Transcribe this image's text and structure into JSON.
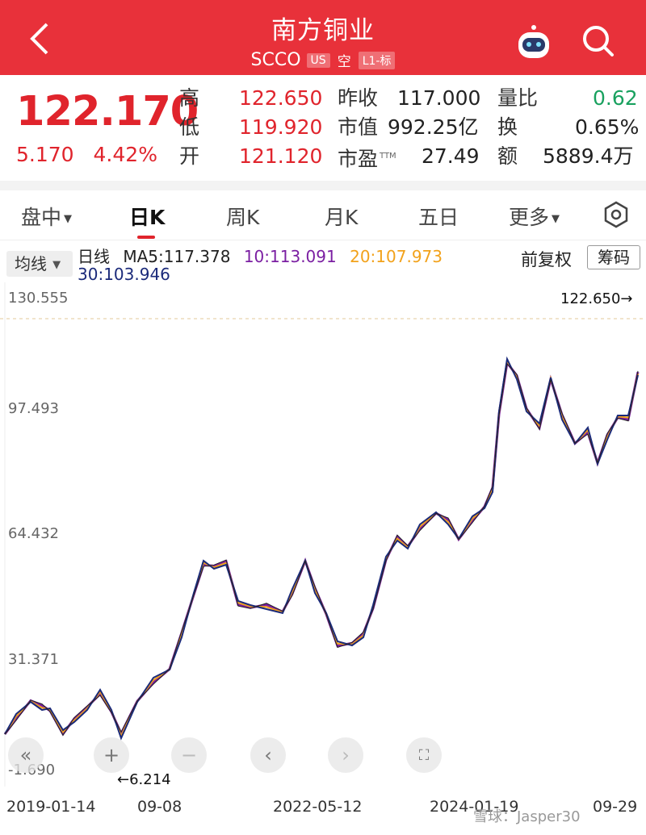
{
  "header": {
    "title": "南方铜业",
    "ticker": "SCCO",
    "tag_market": "US",
    "tag_short": "空",
    "tag_level": "L1-标"
  },
  "quote": {
    "price": "122.170",
    "change": "5.170",
    "change_pct": "4.42%",
    "high_label": "高",
    "high": "122.650",
    "low_label": "低",
    "low": "119.920",
    "open_label": "开",
    "open": "121.120",
    "prev_close_label": "昨收",
    "prev_close": "117.000",
    "market_cap_label": "市值",
    "market_cap": "992.25亿",
    "pe_label": "市盈",
    "pe_tag": "TTM",
    "pe": "27.49",
    "volume_ratio_label": "量比",
    "volume_ratio": "0.62",
    "turnover_label": "换",
    "turnover": "0.65%",
    "amount_label": "额",
    "amount": "5889.4万"
  },
  "tabs": [
    "盘中",
    "日K",
    "周K",
    "月K",
    "五日",
    "更多"
  ],
  "ma": {
    "button": "均线",
    "label": "日线",
    "ma5": "MA5:117.378",
    "ma10": "10:113.091",
    "ma20": "20:107.973",
    "ma30": "30:103.946",
    "adjust": "前复权",
    "chips": "筹码"
  },
  "chart": {
    "y_labels": [
      "130.555",
      "97.493",
      "64.432",
      "31.371",
      "-1.690"
    ],
    "high_annotation": "122.650→",
    "low_annotation": "←6.214",
    "x_labels": [
      "2019-01-14",
      "09-08",
      "2022-05-12",
      "2024-01-19",
      "09-29"
    ],
    "watermark": "雪球：Jasper30"
  },
  "colors": {
    "header": "#e8313a",
    "up": "#e0242c",
    "down": "#19a15f",
    "ma10": "#7b1fa2",
    "ma20": "#f2a21b",
    "ma30": "#1b2a7a"
  }
}
